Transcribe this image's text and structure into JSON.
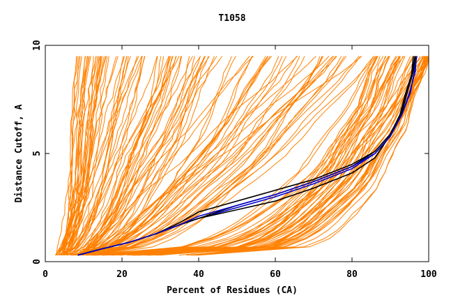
{
  "chart_data": {
    "type": "line",
    "title": "T1058",
    "xlabel": "Percent of Residues (CA)",
    "ylabel": "Distance Cutoff, A",
    "xlim": [
      0,
      100
    ],
    "ylim": [
      0,
      10
    ],
    "x_ticks": [
      "0",
      "20",
      "40",
      "60",
      "80",
      "100"
    ],
    "y_ticks": [
      "0",
      "5",
      "10"
    ],
    "grid": false,
    "legend": "none",
    "colors": {
      "background_series": "#ff8000",
      "highlight_primary": "#0000cc",
      "highlight_secondary": "#000000"
    },
    "background_series_count": 160,
    "background_groups": [
      {
        "x_at_0_3": [
          2.5,
          6
        ],
        "x_at_9_5": [
          8,
          26
        ]
      },
      {
        "x_at_0_3": [
          5,
          10
        ],
        "x_at_9_5": [
          25,
          40
        ]
      },
      {
        "x_at_0_3": [
          6,
          12
        ],
        "x_at_9_5": [
          40,
          60
        ]
      },
      {
        "x_at_0_3": [
          8,
          14
        ],
        "x_at_9_5": [
          60,
          86
        ]
      },
      {
        "x_at_0_3": [
          10,
          30
        ],
        "x_at_9_5": [
          86,
          99.5
        ]
      },
      {
        "x_at_0_3": [
          22,
          40
        ],
        "x_at_9_5": [
          99,
          100
        ]
      }
    ],
    "series": [
      {
        "x": [
          8.5,
          15,
          22,
          29,
          35,
          40,
          50,
          60,
          70,
          80,
          86,
          90,
          93,
          95,
          96.5,
          96.8
        ],
        "y": [
          0.3,
          0.6,
          0.9,
          1.3,
          1.7,
          2.0,
          2.5,
          3.0,
          3.6,
          4.3,
          5.0,
          5.8,
          6.8,
          7.8,
          8.8,
          9.5
        ]
      },
      {
        "x": [
          8.5,
          15,
          22,
          29,
          35,
          40,
          50,
          60,
          70,
          80,
          86,
          90,
          93,
          94.5,
          96.0,
          96.6
        ],
        "y": [
          0.3,
          0.6,
          0.9,
          1.3,
          1.7,
          2.0,
          2.6,
          3.1,
          3.7,
          4.4,
          5.1,
          5.9,
          6.9,
          7.9,
          8.8,
          9.5
        ]
      },
      {
        "x": [
          8.5,
          15,
          22,
          29,
          35,
          40,
          50,
          60,
          70,
          80,
          86,
          90,
          92.5,
          94,
          95.8,
          96.4
        ],
        "y": [
          0.3,
          0.6,
          0.9,
          1.3,
          1.8,
          2.3,
          2.8,
          3.3,
          3.8,
          4.5,
          5.1,
          5.9,
          6.8,
          7.8,
          8.8,
          9.5
        ]
      },
      {
        "x": [
          8.5,
          15,
          22,
          29,
          35,
          40,
          50,
          60,
          70,
          80,
          86,
          89,
          92,
          94,
          95.5,
          96.0
        ],
        "y": [
          0.3,
          0.6,
          0.9,
          1.3,
          1.7,
          2.0,
          2.4,
          2.8,
          3.4,
          4.1,
          4.8,
          5.6,
          6.5,
          7.6,
          8.6,
          9.5
        ]
      },
      {
        "x": [
          8.5,
          15,
          22,
          29,
          35,
          40,
          50,
          60,
          70,
          80,
          86,
          90,
          93,
          95.2,
          96.3,
          96.9
        ],
        "y": [
          0.3,
          0.6,
          0.9,
          1.3,
          1.7,
          2.1,
          2.6,
          3.1,
          3.7,
          4.4,
          5.0,
          5.8,
          6.8,
          7.8,
          8.8,
          9.5
        ]
      }
    ],
    "series_colors": [
      "#0000cc",
      "#000000",
      "#000000",
      "#000000",
      "#0000cc"
    ]
  }
}
